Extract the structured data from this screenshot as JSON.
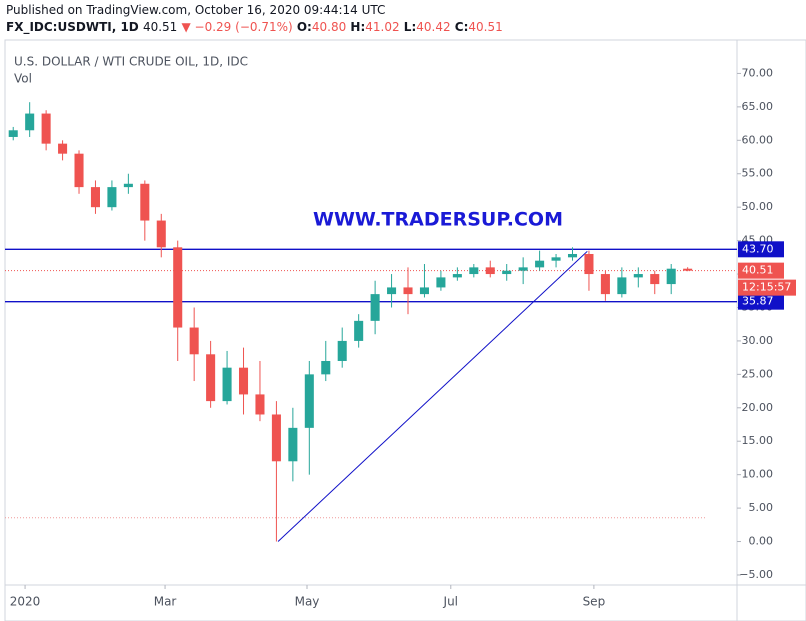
{
  "header": {
    "published": "Published on TradingView.com, October 16, 2020 09:44:14 UTC",
    "symbol": "FX_IDC:USDWTI, 1D",
    "last": "40.51",
    "change": "▼ −0.29 (−0.71%)",
    "o_label": "O:",
    "o": "40.80",
    "h_label": "H:",
    "h": "41.02",
    "l_label": "L:",
    "l": "40.42",
    "c_label": "C:",
    "c": "40.51"
  },
  "chart_data": {
    "type": "candlestick",
    "title": "U.S. DOLLAR / WTI CRUDE OIL, 1D, IDC",
    "subtitle": "Vol",
    "watermark": "WWW.TRADERSUP.COM",
    "up_color": "#26a69a",
    "down_color": "#ef5350",
    "open": [
      60.5,
      61.5,
      64,
      59.5,
      58,
      53,
      50,
      53,
      53.5,
      48,
      44,
      32,
      28,
      21,
      26,
      22,
      19,
      12,
      17,
      25,
      27,
      30,
      33,
      37,
      38,
      37,
      38,
      39.5,
      40,
      41,
      40,
      40.5,
      41,
      42,
      42.5,
      43,
      40,
      37,
      39.5,
      40,
      38.5,
      40.8
    ],
    "high": [
      62,
      65.7,
      64.5,
      60,
      58.5,
      54,
      54,
      55,
      54,
      49,
      45,
      35,
      30,
      28.5,
      29,
      27,
      21,
      20,
      27,
      30,
      32,
      34,
      39,
      40,
      41,
      41.5,
      40.5,
      41,
      41.5,
      42,
      41.5,
      42.5,
      43.5,
      43,
      44,
      43.5,
      40.5,
      41,
      41,
      40.5,
      41.5,
      41.02
    ],
    "low": [
      60,
      60.5,
      58.5,
      57,
      52,
      49,
      49.5,
      52,
      45,
      42.5,
      27,
      24,
      20,
      20.5,
      19,
      18,
      0,
      9,
      10,
      24,
      26,
      29,
      31,
      35,
      34,
      36.5,
      37.5,
      39,
      39.5,
      39.5,
      39,
      38.5,
      40.5,
      41,
      42,
      37.5,
      36,
      36.5,
      38,
      37,
      37,
      40.42
    ],
    "close": [
      61.5,
      64,
      59.5,
      58,
      53,
      50,
      53,
      53.5,
      48,
      44,
      32,
      28,
      21,
      26,
      22,
      19,
      12,
      17,
      25,
      27,
      30,
      33,
      37,
      38,
      37,
      38,
      39.5,
      40,
      41,
      40,
      40.5,
      41,
      42,
      42.5,
      43,
      40,
      37,
      39.5,
      40,
      38.5,
      40.8,
      40.51
    ],
    "xlim": [
      -0.5,
      44
    ],
    "xticks": [
      {
        "value": 0.72,
        "label": "2020"
      },
      {
        "value": 9.23,
        "label": "Mar"
      },
      {
        "value": 17.86,
        "label": "May"
      },
      {
        "value": 26.6,
        "label": "Jul"
      },
      {
        "value": 35.3,
        "label": "Sep"
      }
    ],
    "ylim": [
      -6.5,
      75
    ],
    "yticks": [
      {
        "value": 70,
        "label": "70.00"
      },
      {
        "value": 65,
        "label": "65.00"
      },
      {
        "value": 60,
        "label": "60.00"
      },
      {
        "value": 55,
        "label": "55.00"
      },
      {
        "value": 50,
        "label": "50.00"
      },
      {
        "value": 45,
        "label": "45.00"
      },
      {
        "value": 40,
        "label": "40.00"
      },
      {
        "value": 35,
        "label": "35.00"
      },
      {
        "value": 30,
        "label": "30.00"
      },
      {
        "value": 25,
        "label": "25.00"
      },
      {
        "value": 20,
        "label": "20.00"
      },
      {
        "value": 15,
        "label": "15.00"
      },
      {
        "value": 10,
        "label": "10.00"
      },
      {
        "value": 5,
        "label": "5.00"
      },
      {
        "value": 0,
        "label": "0.00"
      },
      {
        "value": -5,
        "label": "−5.00"
      }
    ],
    "hlines": [
      {
        "value": 43.7,
        "label": "43.70",
        "color": "#1010c8"
      },
      {
        "value": 35.87,
        "label": "35.87",
        "color": "#1010c8"
      }
    ],
    "price_line": {
      "value": 40.51,
      "label": "40.51",
      "countdown": "12:15:57",
      "color": "#ef5350"
    },
    "low_line": {
      "value": 3.56,
      "color": "#ef9a9a"
    },
    "trendline": {
      "x": [
        16.1,
        34.9
      ],
      "y": [
        0,
        43.4
      ],
      "color": "#1010c8"
    }
  }
}
